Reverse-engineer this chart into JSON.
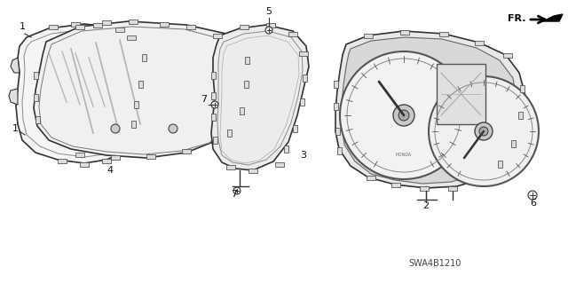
{
  "part_number": "SWA4B1210",
  "background_color": "#ffffff",
  "label_color": "#111111",
  "line_color": "#333333",
  "figsize": [
    6.4,
    3.19
  ],
  "dpi": 100
}
